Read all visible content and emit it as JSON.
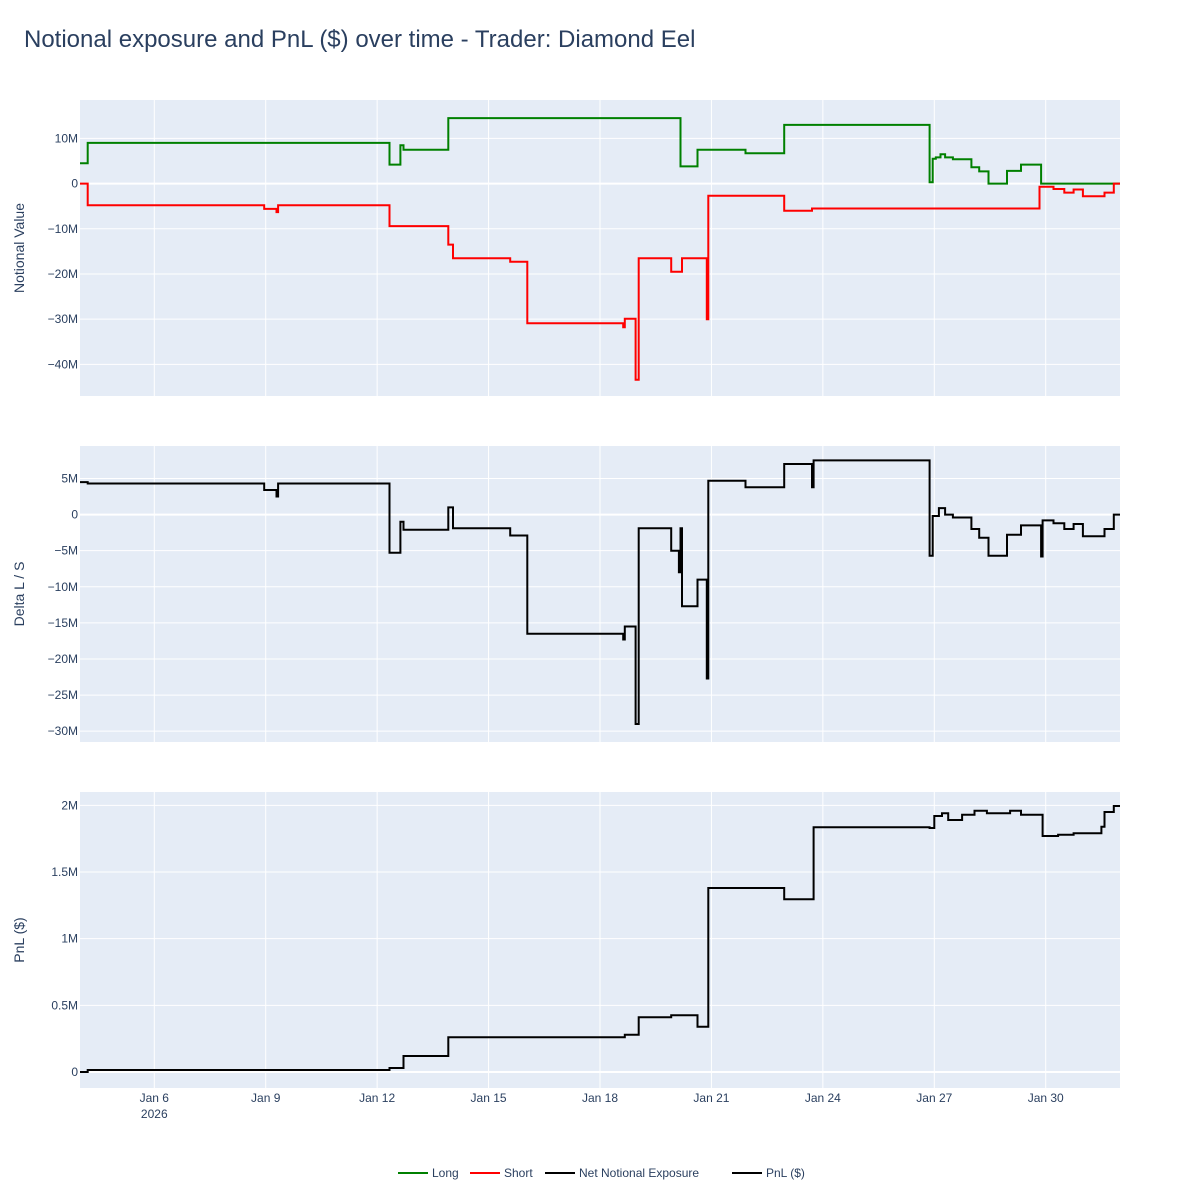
{
  "title": "Notional exposure and PnL ($) over time - Trader: Diamond Eel",
  "colors": {
    "long": "#008000",
    "short": "#ff0000",
    "net": "#000000",
    "pnl": "#000000",
    "plot_bg": "#e5ecf6",
    "grid": "#ffffff",
    "text": "#2a3f5f"
  },
  "x_axis": {
    "range": [
      "2026-01-04T00:00",
      "2026-02-01T00:00"
    ],
    "ticks": [
      {
        "date": "2026-01-06",
        "label": "Jan 6",
        "sublabel": "2026"
      },
      {
        "date": "2026-01-09",
        "label": "Jan 9"
      },
      {
        "date": "2026-01-12",
        "label": "Jan 12"
      },
      {
        "date": "2026-01-15",
        "label": "Jan 15"
      },
      {
        "date": "2026-01-18",
        "label": "Jan 18"
      },
      {
        "date": "2026-01-21",
        "label": "Jan 21"
      },
      {
        "date": "2026-01-24",
        "label": "Jan 24"
      },
      {
        "date": "2026-01-27",
        "label": "Jan 27"
      },
      {
        "date": "2026-01-30",
        "label": "Jan 30"
      }
    ]
  },
  "legend": [
    {
      "label": "Long",
      "color": "#008000"
    },
    {
      "label": "Short",
      "color": "#ff0000"
    },
    {
      "label": "Net Notional Exposure",
      "color": "#000000"
    },
    {
      "label": "PnL ($)",
      "color": "#000000"
    }
  ],
  "chart_data": [
    {
      "type": "line",
      "ylabel": "Notional Value",
      "ylim": [
        -47000000,
        18500000
      ],
      "yticks": [
        {
          "v": 10000000,
          "label": "10M"
        },
        {
          "v": 0,
          "label": "0"
        },
        {
          "v": -10000000,
          "label": "−10M"
        },
        {
          "v": -20000000,
          "label": "−20M"
        },
        {
          "v": -30000000,
          "label": "−30M"
        },
        {
          "v": -40000000,
          "label": "−40M"
        }
      ],
      "series": [
        {
          "name": "Long",
          "color": "#008000",
          "points": [
            [
              "2026-01-04T00:00",
              4500000
            ],
            [
              "2026-01-04T05:00",
              9000000
            ],
            [
              "2026-01-12T08:00",
              4200000
            ],
            [
              "2026-01-12T15:00",
              8500000
            ],
            [
              "2026-01-12T17:00",
              7500000
            ],
            [
              "2026-01-13T22:00",
              14500000
            ],
            [
              "2026-01-20T04:00",
              3800000
            ],
            [
              "2026-01-20T15:00",
              7500000
            ],
            [
              "2026-01-21T22:00",
              6700000
            ],
            [
              "2026-01-22T23:00",
              13000000
            ],
            [
              "2026-01-26T21:00",
              300000
            ],
            [
              "2026-01-26T23:00",
              5500000
            ],
            [
              "2026-01-27T01:00",
              5800000
            ],
            [
              "2026-01-27T04:00",
              6500000
            ],
            [
              "2026-01-27T07:00",
              5800000
            ],
            [
              "2026-01-27T12:00",
              5400000
            ],
            [
              "2026-01-28T00:00",
              3600000
            ],
            [
              "2026-01-28T05:00",
              2700000
            ],
            [
              "2026-01-28T11:00",
              0
            ],
            [
              "2026-01-28T23:00",
              2800000
            ],
            [
              "2026-01-29T08:00",
              4200000
            ],
            [
              "2026-01-29T21:00",
              0
            ],
            [
              "2026-01-31T22:00",
              0
            ]
          ]
        },
        {
          "name": "Short",
          "color": "#ff0000",
          "points": [
            [
              "2026-01-04T00:00",
              0
            ],
            [
              "2026-01-04T05:00",
              -4800000
            ],
            [
              "2026-01-08T23:00",
              -5600000
            ],
            [
              "2026-01-09T07:00",
              -6300000
            ],
            [
              "2026-01-09T08:00",
              -4800000
            ],
            [
              "2026-01-12T08:00",
              -9400000
            ],
            [
              "2026-01-13T22:00",
              -13500000
            ],
            [
              "2026-01-14T01:00",
              -16500000
            ],
            [
              "2026-01-15T14:00",
              -17300000
            ],
            [
              "2026-01-16T01:00",
              -30900000
            ],
            [
              "2026-01-18T15:00",
              -31800000
            ],
            [
              "2026-01-18T16:00",
              -29900000
            ],
            [
              "2026-01-18T23:00",
              -43400000
            ],
            [
              "2026-01-19T01:00",
              -16500000
            ],
            [
              "2026-01-19T22:00",
              -19500000
            ],
            [
              "2026-01-20T05:00",
              -16500000
            ],
            [
              "2026-01-20T21:00",
              -30000000
            ],
            [
              "2026-01-20T22:00",
              -2700000
            ],
            [
              "2026-01-22T23:00",
              -6000000
            ],
            [
              "2026-01-23T17:00",
              -5500000
            ],
            [
              "2026-01-29T20:00",
              -700000
            ],
            [
              "2026-01-30T05:00",
              -1200000
            ],
            [
              "2026-01-30T12:00",
              -2000000
            ],
            [
              "2026-01-30T18:00",
              -1300000
            ],
            [
              "2026-01-31T00:00",
              -2800000
            ],
            [
              "2026-01-31T14:00",
              -2000000
            ],
            [
              "2026-01-31T20:00",
              0
            ]
          ]
        }
      ]
    },
    {
      "type": "line",
      "ylabel": "Delta L / S",
      "ylim": [
        -31500000,
        9500000
      ],
      "yticks": [
        {
          "v": 5000000,
          "label": "5M"
        },
        {
          "v": 0,
          "label": "0"
        },
        {
          "v": -5000000,
          "label": "−5M"
        },
        {
          "v": -10000000,
          "label": "−10M"
        },
        {
          "v": -15000000,
          "label": "−15M"
        },
        {
          "v": -20000000,
          "label": "−20M"
        },
        {
          "v": -25000000,
          "label": "−25M"
        },
        {
          "v": -30000000,
          "label": "−30M"
        }
      ],
      "series": [
        {
          "name": "Net Notional Exposure",
          "color": "#000000",
          "points": [
            [
              "2026-01-04T00:00",
              4500000
            ],
            [
              "2026-01-04T05:00",
              4300000
            ],
            [
              "2026-01-08T23:00",
              3400000
            ],
            [
              "2026-01-09T07:00",
              2500000
            ],
            [
              "2026-01-09T08:00",
              4300000
            ],
            [
              "2026-01-12T08:00",
              -5300000
            ],
            [
              "2026-01-12T15:00",
              -1000000
            ],
            [
              "2026-01-12T17:00",
              -2100000
            ],
            [
              "2026-01-13T22:00",
              1000000
            ],
            [
              "2026-01-14T01:00",
              -1900000
            ],
            [
              "2026-01-15T14:00",
              -2900000
            ],
            [
              "2026-01-16T01:00",
              -16500000
            ],
            [
              "2026-01-18T15:00",
              -17300000
            ],
            [
              "2026-01-18T16:00",
              -15500000
            ],
            [
              "2026-01-18T23:00",
              -29000000
            ],
            [
              "2026-01-19T01:00",
              -1900000
            ],
            [
              "2026-01-19T22:00",
              -5000000
            ],
            [
              "2026-01-20T03:00",
              -8000000
            ],
            [
              "2026-01-20T04:00",
              -1900000
            ],
            [
              "2026-01-20T05:00",
              -12700000
            ],
            [
              "2026-01-20T15:00",
              -9000000
            ],
            [
              "2026-01-20T21:00",
              -22700000
            ],
            [
              "2026-01-20T22:00",
              4700000
            ],
            [
              "2026-01-21T22:00",
              3800000
            ],
            [
              "2026-01-22T23:00",
              7000000
            ],
            [
              "2026-01-23T17:00",
              3800000
            ],
            [
              "2026-01-23T18:00",
              7500000
            ],
            [
              "2026-01-26T21:00",
              -5700000
            ],
            [
              "2026-01-26T23:00",
              -200000
            ],
            [
              "2026-01-27T03:00",
              900000
            ],
            [
              "2026-01-27T07:00",
              0
            ],
            [
              "2026-01-27T12:00",
              -400000
            ],
            [
              "2026-01-28T00:00",
              -2000000
            ],
            [
              "2026-01-28T05:00",
              -3200000
            ],
            [
              "2026-01-28T11:00",
              -5700000
            ],
            [
              "2026-01-28T23:00",
              -2800000
            ],
            [
              "2026-01-29T08:00",
              -1500000
            ],
            [
              "2026-01-29T21:00",
              -5800000
            ],
            [
              "2026-01-29T22:00",
              -800000
            ],
            [
              "2026-01-30T05:00",
              -1200000
            ],
            [
              "2026-01-30T12:00",
              -2000000
            ],
            [
              "2026-01-30T18:00",
              -1300000
            ],
            [
              "2026-01-31T00:00",
              -3000000
            ],
            [
              "2026-01-31T14:00",
              -2000000
            ],
            [
              "2026-01-31T20:00",
              0
            ]
          ]
        }
      ]
    },
    {
      "type": "line",
      "ylabel": "PnL ($)",
      "ylim": [
        -120000,
        2100000
      ],
      "yticks": [
        {
          "v": 2000000,
          "label": "2M"
        },
        {
          "v": 1500000,
          "label": "1.5M"
        },
        {
          "v": 1000000,
          "label": "1M"
        },
        {
          "v": 500000,
          "label": "0.5M"
        },
        {
          "v": 0,
          "label": "0"
        }
      ],
      "series": [
        {
          "name": "PnL ($)",
          "color": "#000000",
          "points": [
            [
              "2026-01-04T00:00",
              0
            ],
            [
              "2026-01-04T05:00",
              15000
            ],
            [
              "2026-01-12T08:00",
              30000
            ],
            [
              "2026-01-12T17:00",
              120000
            ],
            [
              "2026-01-13T22:00",
              260000
            ],
            [
              "2026-01-18T16:00",
              280000
            ],
            [
              "2026-01-19T01:00",
              410000
            ],
            [
              "2026-01-19T22:00",
              425000
            ],
            [
              "2026-01-20T15:00",
              340000
            ],
            [
              "2026-01-20T22:00",
              1380000
            ],
            [
              "2026-01-22T23:00",
              1295000
            ],
            [
              "2026-01-23T18:00",
              1835000
            ],
            [
              "2026-01-26T21:00",
              1830000
            ],
            [
              "2026-01-27T00:00",
              1920000
            ],
            [
              "2026-01-27T05:00",
              1940000
            ],
            [
              "2026-01-27T09:00",
              1890000
            ],
            [
              "2026-01-27T18:00",
              1930000
            ],
            [
              "2026-01-28T02:00",
              1960000
            ],
            [
              "2026-01-28T10:00",
              1940000
            ],
            [
              "2026-01-29T01:00",
              1960000
            ],
            [
              "2026-01-29T08:00",
              1930000
            ],
            [
              "2026-01-29T22:00",
              1770000
            ],
            [
              "2026-01-30T08:00",
              1780000
            ],
            [
              "2026-01-30T18:00",
              1790000
            ],
            [
              "2026-01-31T12:00",
              1840000
            ],
            [
              "2026-01-31T14:00",
              1950000
            ],
            [
              "2026-01-31T20:00",
              1995000
            ]
          ]
        }
      ]
    }
  ]
}
